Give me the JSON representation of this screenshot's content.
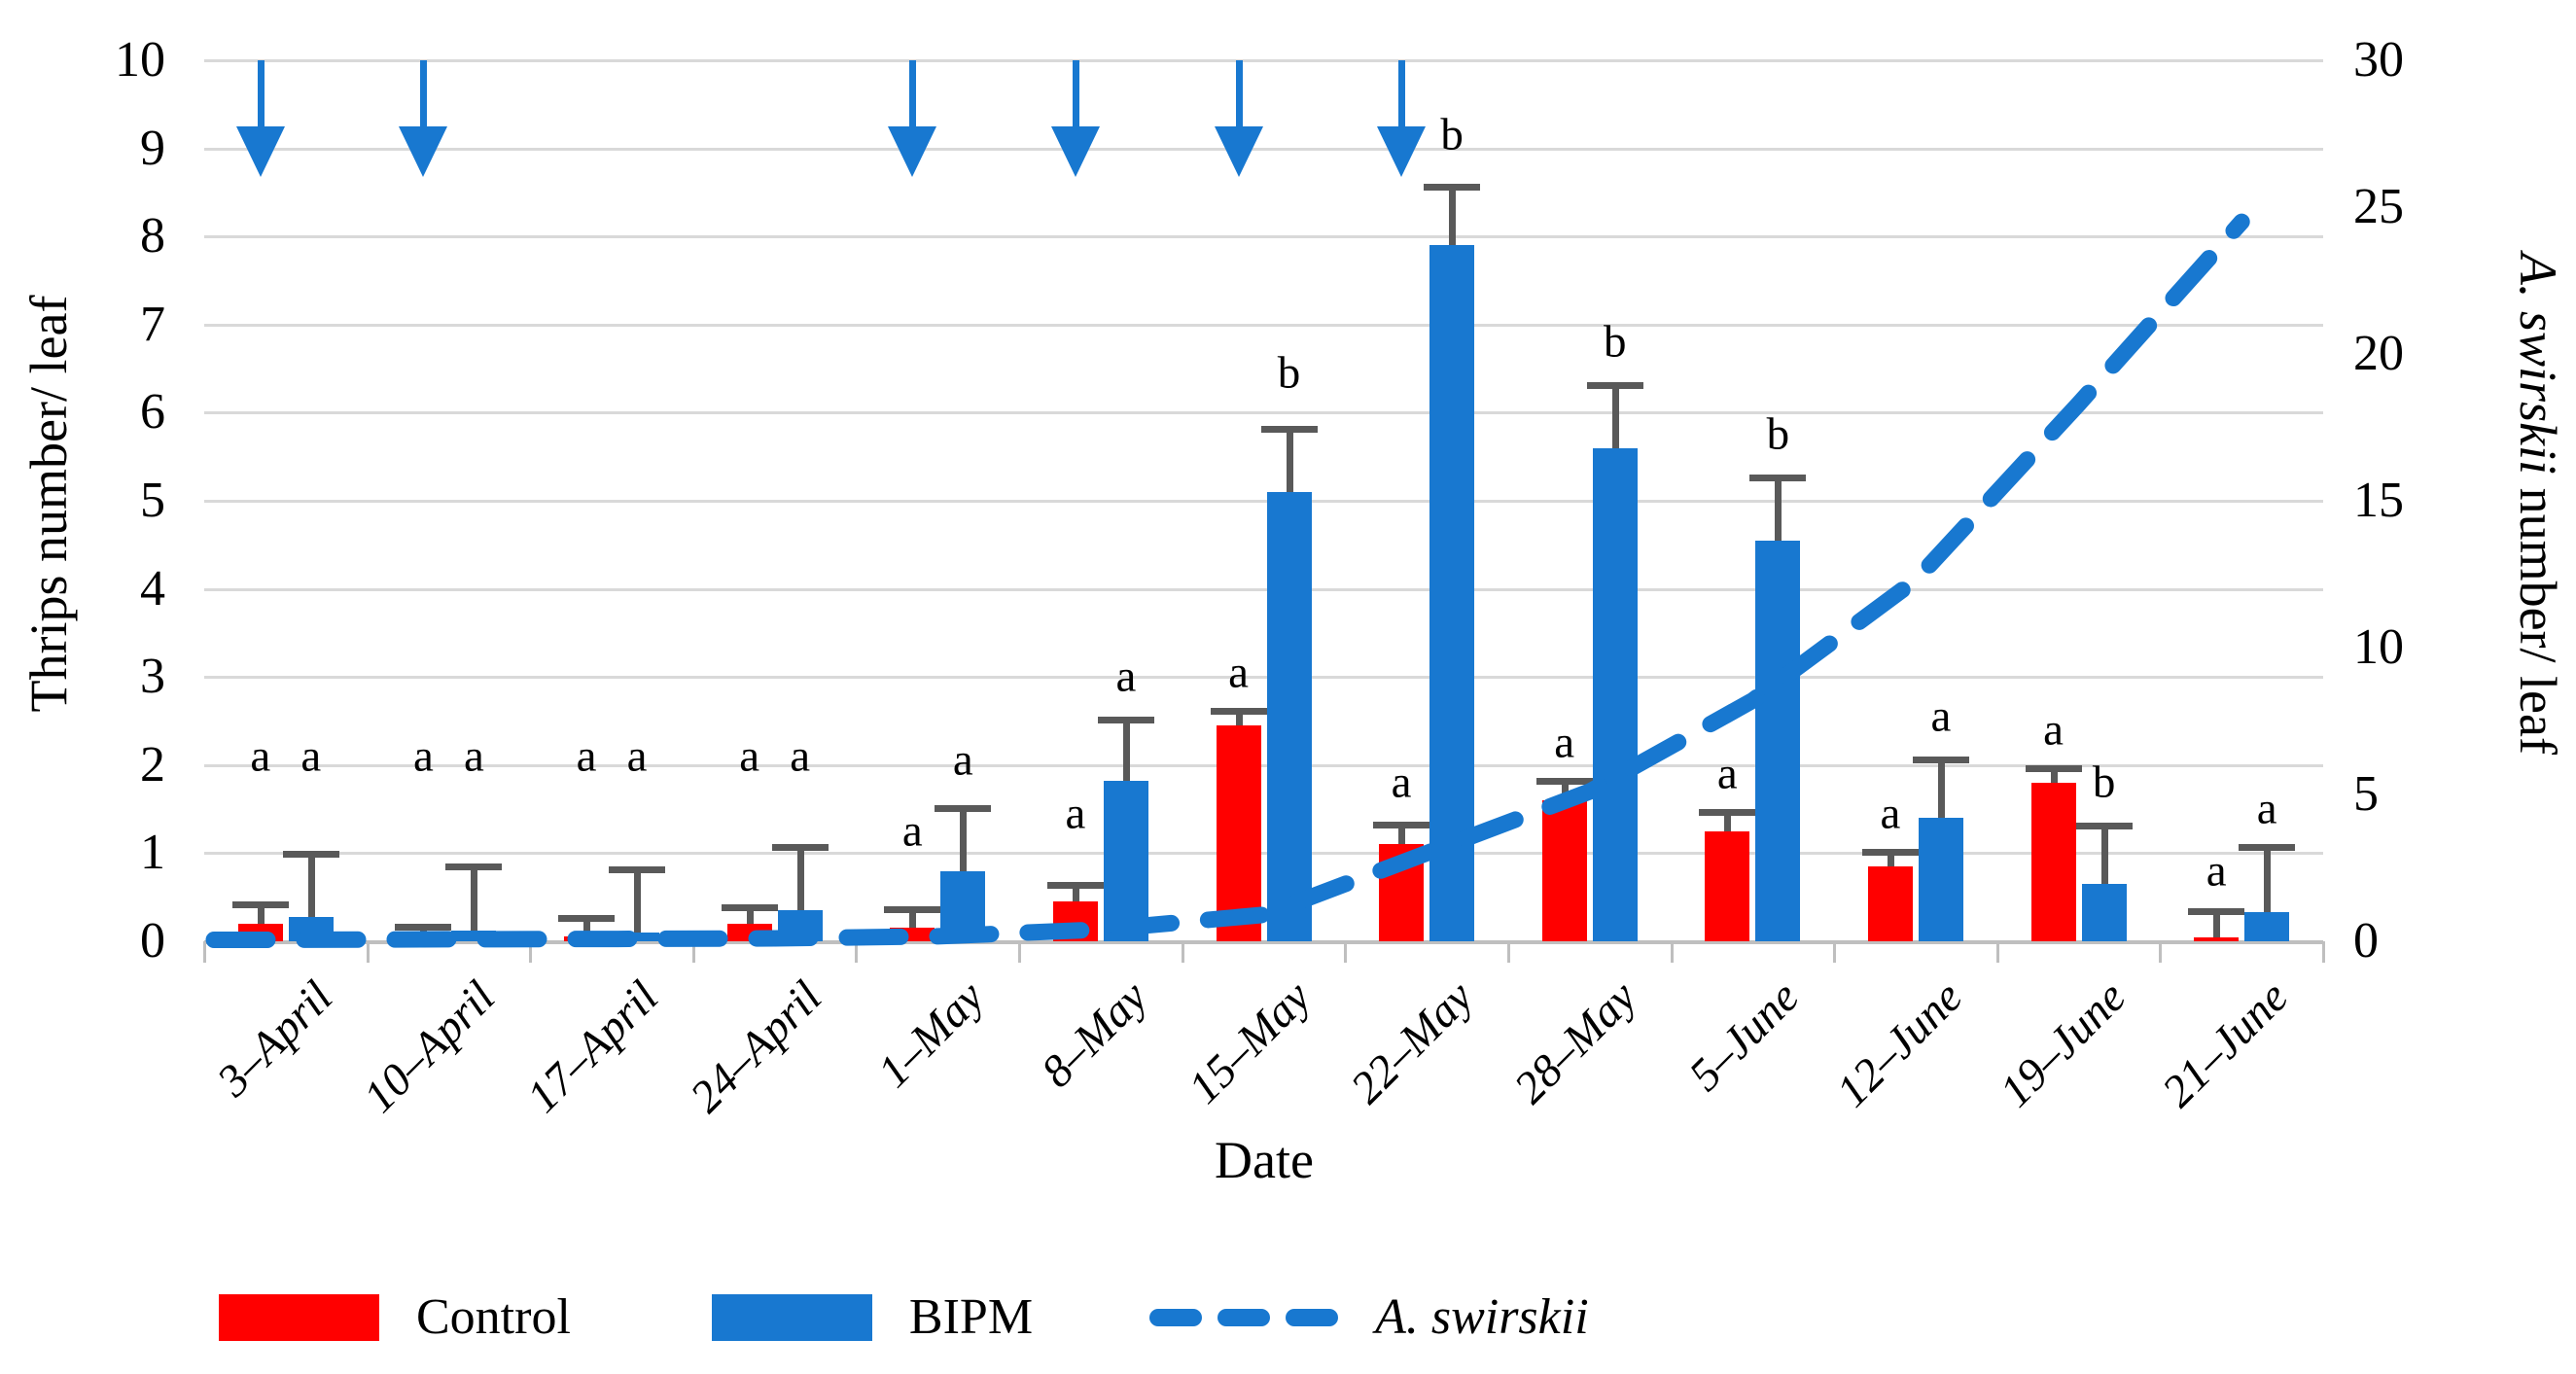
{
  "chart_data": {
    "type": "bar",
    "title": "",
    "categories": [
      "3–April",
      "10–April",
      "17–April",
      "24–April",
      "1–May",
      "8–May",
      "15–May",
      "22–May",
      "28–May",
      "5–June",
      "12–June",
      "19–June",
      "21–June"
    ],
    "x_axis_title": "Date",
    "y_left": {
      "title": "Thrips number/ leaf",
      "min": 0,
      "max": 10,
      "tick_labels": [
        "0",
        "1",
        "2",
        "3",
        "4",
        "5",
        "6",
        "7",
        "8",
        "9",
        "10"
      ]
    },
    "y_right": {
      "title_italic": "A. swirskii",
      "title_rest": " number/ leaf",
      "min": 0,
      "max": 30,
      "tick_labels": [
        "0",
        "5",
        "10",
        "15",
        "20",
        "25",
        "30"
      ]
    },
    "grid": "horizontal",
    "series": [
      {
        "name": "Control",
        "type": "bar",
        "color": "#ff0000",
        "axis": "left",
        "values": [
          0.2,
          0.03,
          0.05,
          0.2,
          0.15,
          0.45,
          2.45,
          1.1,
          1.6,
          1.25,
          0.85,
          1.8,
          0.04
        ],
        "error_top": [
          0.45,
          0.2,
          0.3,
          0.42,
          0.4,
          0.67,
          2.65,
          1.36,
          1.85,
          1.5,
          1.05,
          2.0,
          0.38
        ],
        "letters": [
          "a",
          "a",
          "a",
          "a",
          "a",
          "a",
          "a",
          "a",
          "a",
          "a",
          "a",
          "a",
          "a"
        ],
        "letter_y": [
          2.1,
          2.1,
          2.1,
          2.1,
          1.25,
          1.45,
          3.05,
          1.8,
          2.25,
          1.9,
          1.45,
          2.4,
          0.8
        ]
      },
      {
        "name": "BIPM",
        "type": "bar",
        "color": "#1878d0",
        "axis": "left",
        "values": [
          0.28,
          0.12,
          0.1,
          0.35,
          0.8,
          1.82,
          5.1,
          7.9,
          5.6,
          4.55,
          1.4,
          0.65,
          0.33
        ],
        "error_top": [
          1.03,
          0.88,
          0.85,
          1.1,
          1.55,
          2.55,
          5.85,
          8.6,
          6.35,
          5.3,
          2.1,
          1.35,
          1.1
        ],
        "letters": [
          "a",
          "a",
          "a",
          "a",
          "a",
          "a",
          "b",
          "b",
          "b",
          "b",
          "a",
          "b",
          "a"
        ],
        "letter_y": [
          2.1,
          2.1,
          2.1,
          2.1,
          2.05,
          3.0,
          6.45,
          9.15,
          6.8,
          5.75,
          2.55,
          1.8,
          1.5
        ]
      },
      {
        "name": "A. swirskii",
        "type": "dashed-line",
        "color": "#1878d0",
        "axis": "right",
        "values_right": [
          0.05,
          0.07,
          0.08,
          0.1,
          0.17,
          0.4,
          0.9,
          3.0,
          5.1,
          8.2,
          12.3,
          18.3,
          24.5
        ]
      }
    ],
    "release_arrows": {
      "color": "#1878d0",
      "category_indices": [
        0,
        1,
        4,
        5,
        6,
        7
      ]
    },
    "error_bar_color": "#595959",
    "gridline_color": "#d9d9d9",
    "legend": [
      {
        "label": "Control",
        "swatch": "bar",
        "color": "#ff0000",
        "italic": false
      },
      {
        "label": "BIPM",
        "swatch": "bar",
        "color": "#1878d0",
        "italic": false
      },
      {
        "label": "A. swirskii",
        "swatch": "dashes",
        "color": "#1878d0",
        "italic": true
      }
    ]
  }
}
